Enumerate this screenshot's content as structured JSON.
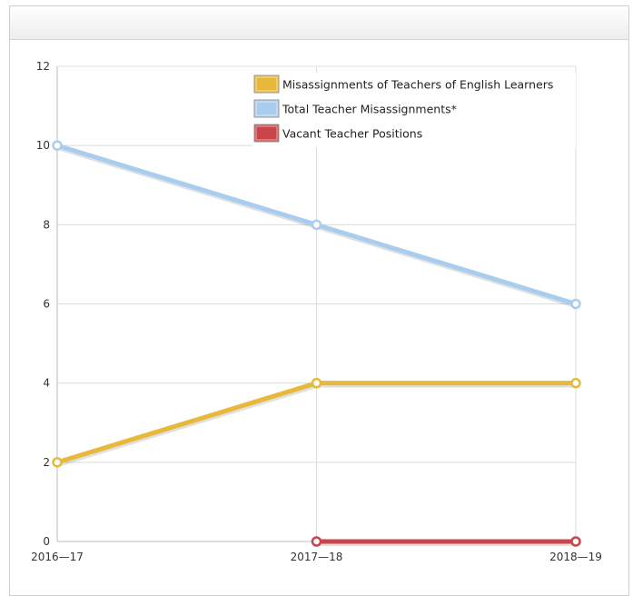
{
  "chart_data": {
    "type": "line",
    "title": "",
    "xlabel": "",
    "ylabel": "",
    "categories": [
      "2016—17",
      "2017—18",
      "2018—19"
    ],
    "ylim": [
      0,
      12
    ],
    "yticks": [
      0,
      2,
      4,
      6,
      8,
      10,
      12
    ],
    "grid": true,
    "legend_position": "top-right",
    "series": [
      {
        "name": "Misassignments of Teachers of English Learners",
        "color": "#e8b83a",
        "values": [
          2,
          4,
          4
        ]
      },
      {
        "name": "Total Teacher Misassignments*",
        "color": "#a9cdee",
        "values": [
          10,
          8,
          6
        ]
      },
      {
        "name": "Vacant Teacher Positions",
        "color": "#c9454a",
        "values": [
          null,
          0,
          0
        ]
      }
    ]
  }
}
